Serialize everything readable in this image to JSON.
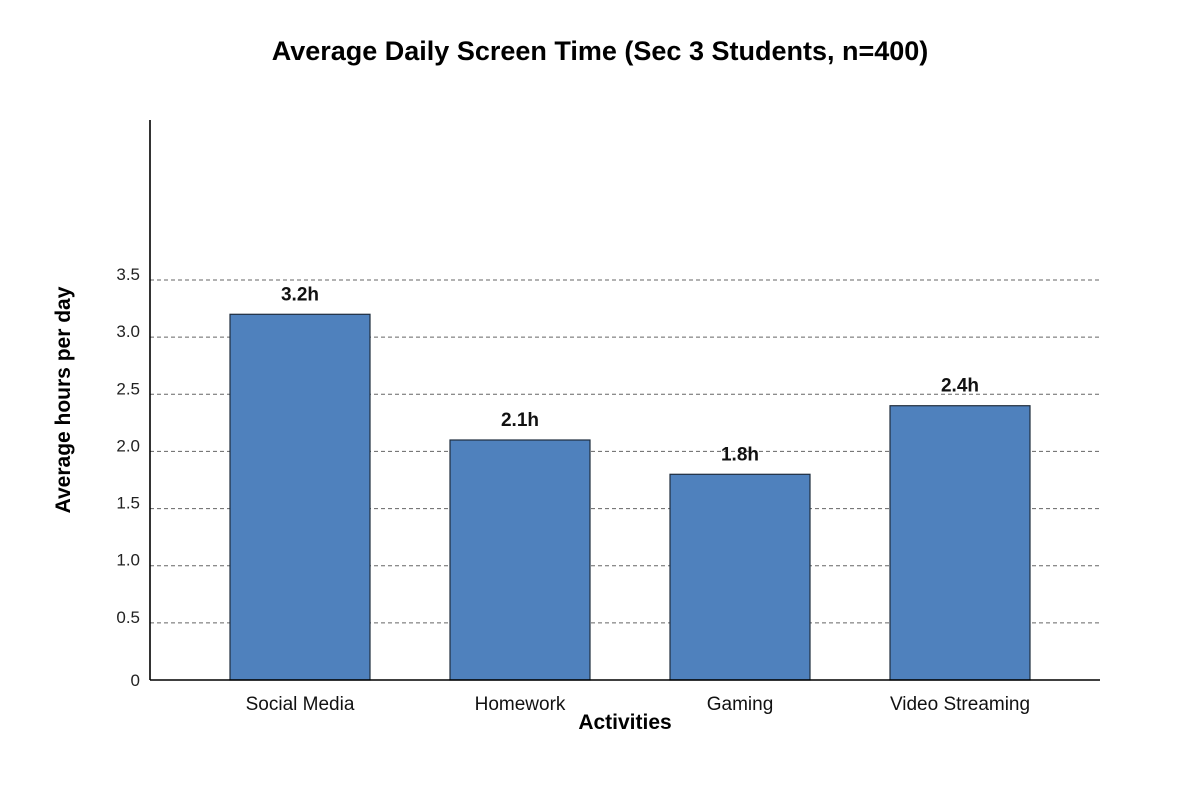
{
  "chart_data": {
    "type": "bar",
    "title": "Average Daily Screen Time (Sec 3 Students, n=400)",
    "xlabel": "Activities",
    "ylabel": "Average hours per day",
    "categories": [
      "Social Media",
      "Homework",
      "Gaming",
      "Video Streaming"
    ],
    "values": [
      3.2,
      2.1,
      1.8,
      2.4
    ],
    "value_labels": [
      "3.2h",
      "2.1h",
      "1.8h",
      "2.4h"
    ],
    "yticks": [
      0,
      0.5,
      1.0,
      1.5,
      2.0,
      2.5,
      3.0,
      3.5
    ],
    "ytick_labels": [
      "0",
      "0.5",
      "1.0",
      "1.5",
      "2.0",
      "2.5",
      "3.0",
      "3.5"
    ],
    "ylim": [
      0,
      4.9
    ],
    "grid": true,
    "legend": false,
    "colors": {
      "bar": "#4f81bd"
    }
  }
}
